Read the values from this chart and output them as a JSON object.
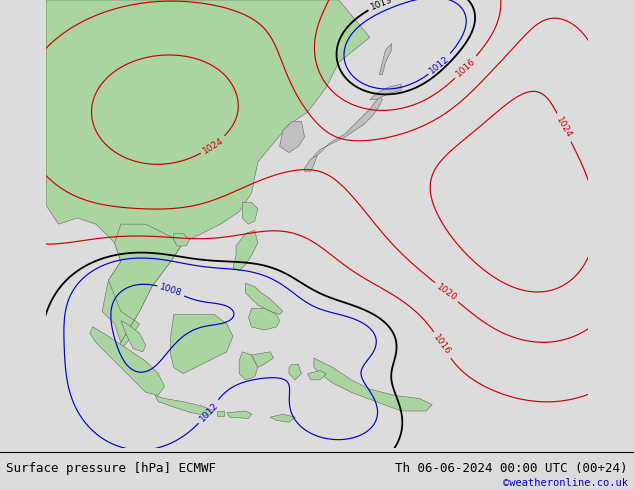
{
  "title_left": "Surface pressure [hPa] ECMWF",
  "title_right": "Th 06-06-2024 00:00 UTC (00+24)",
  "copyright": "©weatheronline.co.uk",
  "bg_color": "#dcdcdc",
  "land_color_green": "#aad4a0",
  "land_color_gray": "#c0c0c0",
  "contour_black_color": "#000000",
  "contour_red_color": "#cc0000",
  "contour_blue_color": "#0000cc",
  "label_fontsize": 6.5,
  "title_fontsize": 9,
  "copyright_fontsize": 7.5,
  "lon_min": 88,
  "lon_max": 175,
  "lat_min": -14,
  "lat_max": 58
}
